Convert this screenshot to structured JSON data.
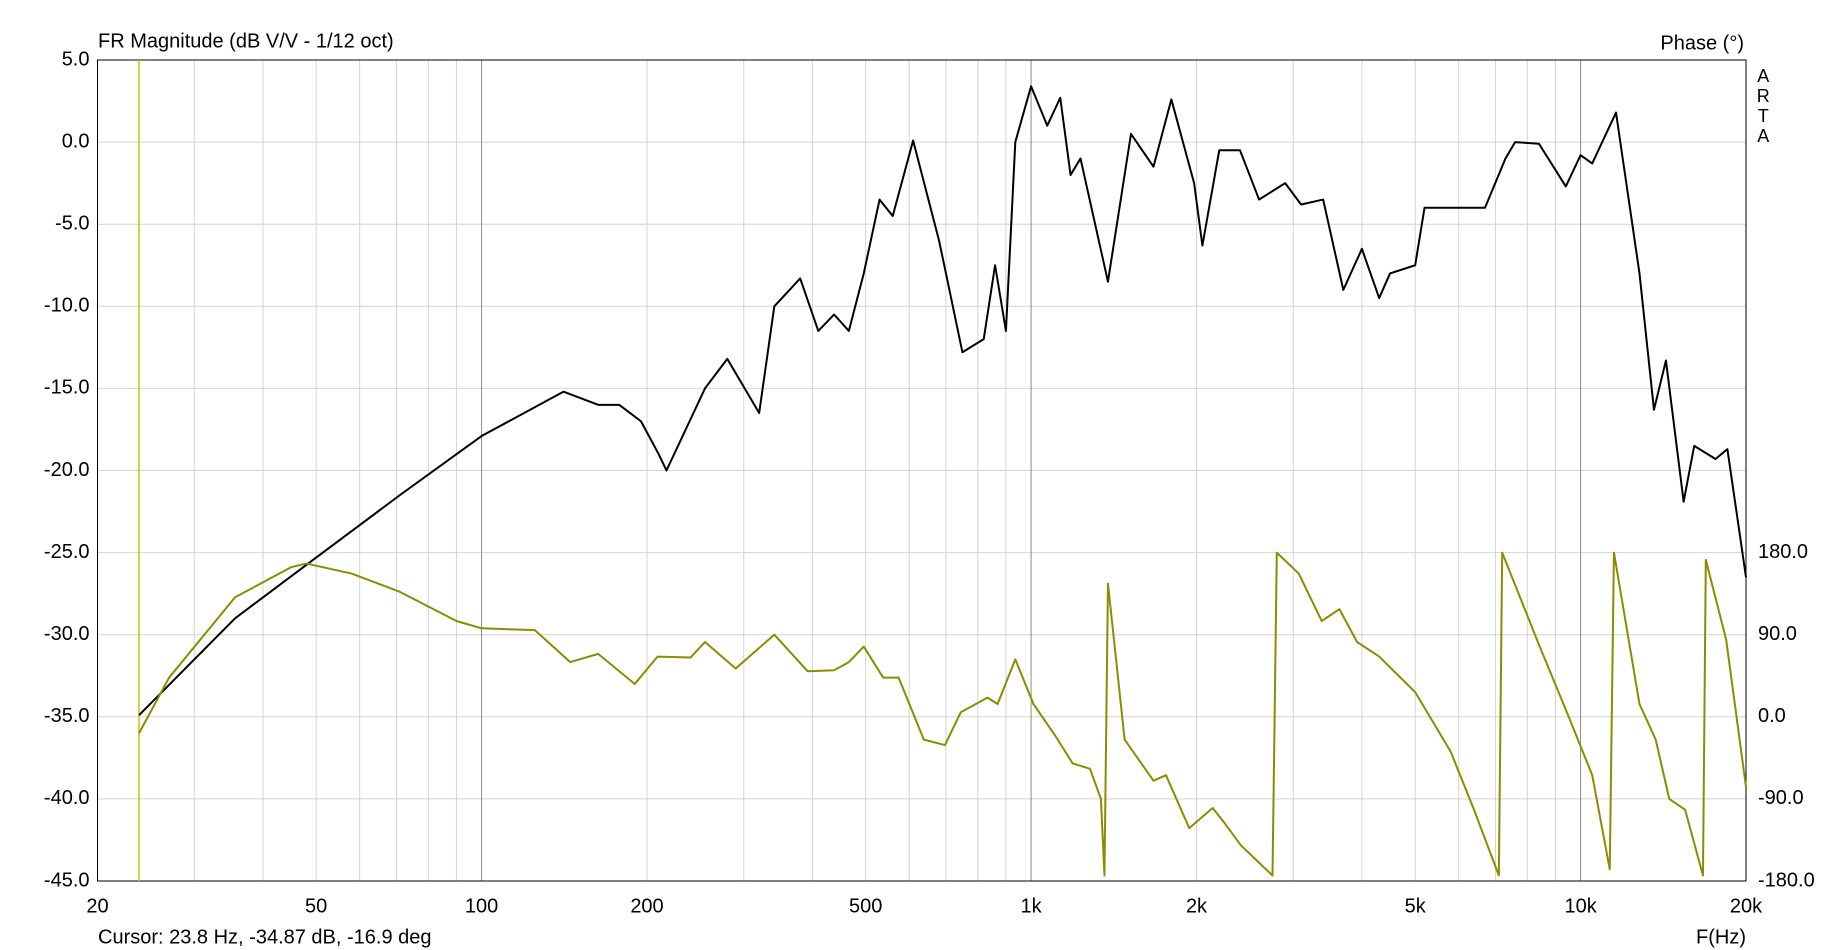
{
  "chart_data": {
    "type": "line",
    "title": "FR Magnitude (dB V/V - 1/12 oct)",
    "y2label": "Phase (°)",
    "logo": "ARTA",
    "xlabel": "F(Hz)",
    "cursor_label": "Cursor: 23.8 Hz, -34.87 dB, -16.9 deg",
    "cursor_x": 23.8,
    "cursor_color": "#c8c800",
    "xscale": "log",
    "grid": true,
    "xlim": [
      20,
      20000
    ],
    "xticks": [
      20,
      50,
      100,
      200,
      500,
      {
        "value": 1000,
        "label": "1k"
      },
      {
        "value": 2000,
        "label": "2k"
      },
      {
        "value": 5000,
        "label": "5k"
      },
      {
        "value": 10000,
        "label": "10k"
      },
      {
        "value": 20000,
        "label": "20k"
      }
    ],
    "xminorticks": [
      30,
      40,
      60,
      70,
      80,
      90,
      300,
      400,
      600,
      700,
      800,
      900,
      3000,
      4000,
      6000,
      7000,
      8000,
      9000
    ],
    "ylim": [
      -45,
      5
    ],
    "yticks": [
      {
        "value": 5,
        "label": "5.0"
      },
      {
        "value": 0,
        "label": "0.0"
      },
      {
        "value": -5,
        "label": "-5.0"
      },
      {
        "value": -10,
        "label": "-10.0"
      },
      {
        "value": -15,
        "label": "-15.0"
      },
      {
        "value": -20,
        "label": "-20.0"
      },
      {
        "value": -25,
        "label": "-25.0"
      },
      {
        "value": -30,
        "label": "-30.0"
      },
      {
        "value": -35,
        "label": "-35.0"
      },
      {
        "value": -40,
        "label": "-40.0"
      },
      {
        "value": -45,
        "label": "-45.0"
      }
    ],
    "y2lim": [
      -180,
      720
    ],
    "y2ticks": [
      {
        "value": 180,
        "label": "180.0"
      },
      {
        "value": 90,
        "label": "90.0"
      },
      {
        "value": 0,
        "label": "0.0"
      },
      {
        "value": -90,
        "label": "-90.0"
      },
      {
        "value": -180,
        "label": "-180.0"
      }
    ],
    "series": [
      {
        "name": "Magnitude",
        "color": "#000000",
        "x": [
          23.8,
          35.6,
          50,
          71,
          100,
          141,
          163,
          178,
          195,
          210,
          217,
          255,
          280,
          320,
          341,
          380,
          410,
          438,
          466,
          496,
          530,
          560,
          610,
          680,
          700,
          750,
          820,
          860,
          900,
          936,
          1000,
          1070,
          1130,
          1180,
          1230,
          1380,
          1520,
          1670,
          1800,
          1980,
          2050,
          2200,
          2400,
          2600,
          2900,
          3100,
          3400,
          3700,
          4000,
          4300,
          4500,
          5000,
          5200,
          6000,
          6700,
          7300,
          7600,
          8400,
          9400,
          10000,
          10500,
          11600,
          12800,
          13600,
          14300,
          15400,
          16100,
          17600,
          18500,
          20000
        ],
        "values": [
          -34.9,
          -29,
          -25.3,
          -21.5,
          -17.9,
          -15.2,
          -16,
          -16,
          -17,
          -19,
          -20,
          -15,
          -13.2,
          -16.5,
          -10,
          -8.3,
          -11.5,
          -10.5,
          -11.5,
          -8,
          -3.5,
          -4.5,
          0.1,
          -6,
          -8,
          -12.8,
          -12,
          -7.5,
          -11.5,
          0,
          3.4,
          1,
          2.7,
          -2,
          -1,
          -8.5,
          0.5,
          -1.5,
          2.6,
          -2.5,
          -6.3,
          -0.5,
          -0.5,
          -3.5,
          -2.5,
          -3.8,
          -3.5,
          -9,
          -6.5,
          -9.5,
          -8,
          -7.5,
          -4,
          -4,
          -4,
          -1,
          0,
          -0.1,
          -2.7,
          -0.8,
          -1.3,
          1.8,
          -8,
          -16.3,
          -13.3,
          -21.9,
          -18.5,
          -19.3,
          -18.7,
          -26.5
        ]
      },
      {
        "name": "Phase",
        "color": "#8c8c00",
        "axis": "y2",
        "x": [
          23.8,
          27,
          35.6,
          45,
          48,
          58,
          71,
          90,
          100,
          125,
          145,
          163,
          190,
          209,
          240,
          255,
          290,
          341,
          392,
          438,
          466,
          496,
          538,
          574,
          638,
          697,
          745,
          833,
          869,
          936,
          1010,
          1110,
          1190,
          1280,
          1340,
          1360,
          1380,
          1480,
          1670,
          1760,
          1940,
          2140,
          2240,
          2410,
          2600,
          2750,
          2800,
          3070,
          3380,
          3640,
          3920,
          4300,
          5000,
          5800,
          6400,
          7100,
          7200,
          8400,
          9500,
          10500,
          11300,
          11500,
          12800,
          13700,
          14500,
          15500,
          16700,
          16900,
          18400,
          20000
        ],
        "values": [
          -18,
          43,
          131,
          164,
          168,
          157,
          137,
          105,
          97,
          95,
          60,
          69,
          36,
          66,
          65,
          82,
          53,
          90,
          50,
          51,
          60,
          77,
          43,
          43,
          -25,
          -31,
          5,
          21,
          14,
          63,
          14,
          -22,
          -51,
          -57,
          -90,
          -174,
          146,
          -25,
          -70,
          -64,
          -122,
          -100,
          -115,
          -141,
          -160,
          -174,
          180,
          157,
          105,
          118,
          82,
          66,
          27,
          -38,
          -102,
          -174,
          180,
          79,
          1,
          -64,
          -167,
          180,
          14,
          -25,
          -90,
          -102,
          -174,
          172,
          85,
          -77
        ]
      }
    ]
  }
}
